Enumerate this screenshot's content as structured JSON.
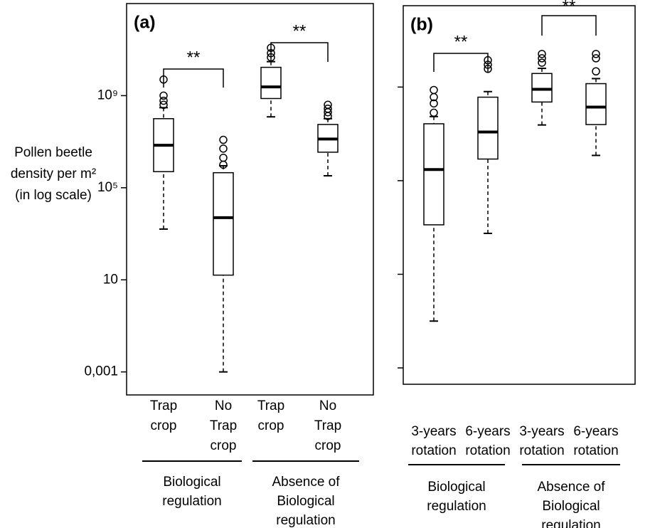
{
  "chart_data": [
    {
      "type": "box",
      "panel_label": "(a)",
      "log_scale": true,
      "color": "#000000",
      "ylabel": [
        "Pollen beetle",
        "density per m²",
        "(in log scale)"
      ],
      "ylim": [
        0.0001,
        10000000000000
      ],
      "yticks": [
        {
          "value": 0.001,
          "label": "0,001"
        },
        10,
        {
          "value": 100000,
          "label": "10⁵"
        },
        {
          "value": 1000000000,
          "label": "10⁹"
        }
      ],
      "show_ytick_labels": true,
      "categories": [
        [
          "Trap",
          "crop"
        ],
        [
          "No",
          "Trap",
          "crop"
        ],
        [
          "Trap",
          "crop"
        ],
        [
          "No",
          "Trap",
          "crop"
        ]
      ],
      "groups": [
        [
          "Biological",
          "regulation"
        ],
        [
          "Absence of",
          "Biological",
          "regulation"
        ]
      ],
      "annotations": [
        "**",
        "**"
      ],
      "boxes": [
        {
          "whislo": 1600,
          "q1": 500000,
          "med": 7000000,
          "q3": 100000000,
          "whishi": 300000000,
          "fliers": [
            400000000,
            600000000,
            1000000000,
            5000000000
          ]
        },
        {
          "whislo": 0.001,
          "q1": 16,
          "med": 5000,
          "q3": 450000,
          "whishi": 900000,
          "fliers": [
            1000000,
            2000000,
            5000000,
            12000000
          ]
        },
        {
          "whislo": 120000000,
          "q1": 750000000,
          "med": 2400000000,
          "q3": 17000000000,
          "whishi": 30000000000,
          "fliers": [
            46000000000,
            70000000000,
            120000000000
          ]
        },
        {
          "whislo": 330000,
          "q1": 3500000,
          "med": 13000000,
          "q3": 56000000,
          "whishi": 100000000,
          "fliers": [
            130000000,
            190000000,
            270000000,
            400000000
          ]
        }
      ]
    },
    {
      "type": "box",
      "panel_label": "(b)",
      "log_scale": true,
      "color": "#000000",
      "ylim": [
        0.0002,
        3000000000000
      ],
      "yticks": [
        0.001,
        10,
        100000,
        1000000000
      ],
      "show_ytick_labels": false,
      "categories": [
        [
          "3-years",
          "rotation"
        ],
        [
          "6-years",
          "rotation"
        ],
        [
          "3-years",
          "rotation"
        ],
        [
          "6-years",
          "rotation"
        ]
      ],
      "groups": [
        [
          "Biological",
          "regulation"
        ],
        [
          "Absence of",
          "Biological",
          "regulation"
        ]
      ],
      "annotations": [
        "**",
        "**"
      ],
      "boxes": [
        {
          "whislo": 0.1,
          "q1": 1300,
          "med": 300000,
          "q3": 27000000,
          "whishi": 55000000,
          "fliers": [
            80000000,
            200000000,
            370000000,
            750000000
          ]
        },
        {
          "whislo": 560,
          "q1": 840000,
          "med": 12000000,
          "q3": 370000000,
          "whishi": 640000000,
          "fliers": [
            6000000000,
            9000000000,
            14000000000
          ]
        },
        {
          "whislo": 24000000,
          "q1": 230000000,
          "med": 800000000,
          "q3": 3800000000,
          "whishi": 6300000000,
          "fliers": [
            11000000000,
            17000000000,
            26000000000
          ]
        },
        {
          "whislo": 1200000,
          "q1": 25000000,
          "med": 140000000,
          "q3": 1400000000,
          "whishi": 2300000000,
          "fliers": [
            4700000000,
            17000000000,
            26000000000
          ]
        }
      ]
    }
  ]
}
